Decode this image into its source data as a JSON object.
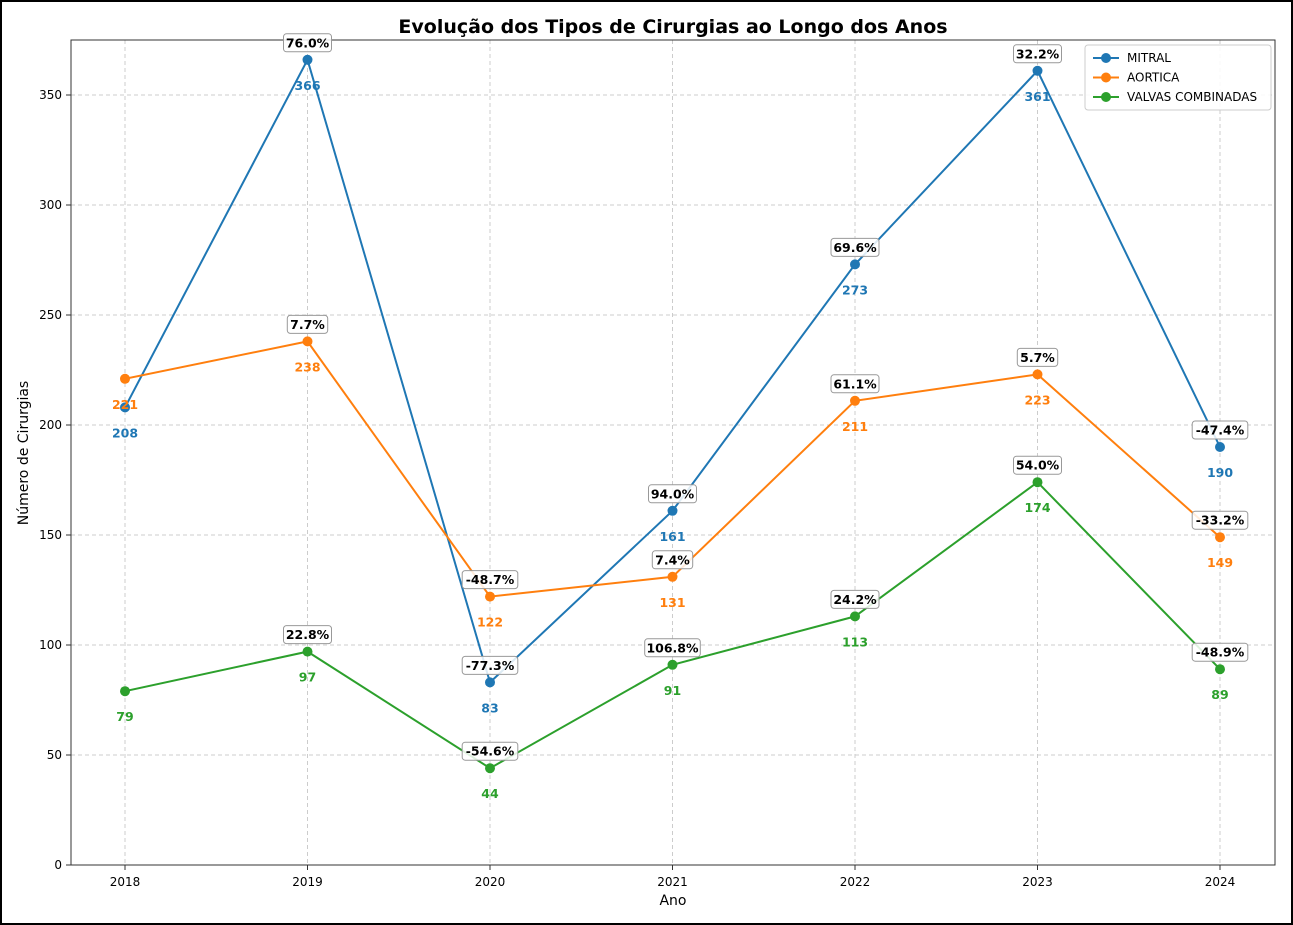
{
  "chart_data": {
    "type": "line",
    "title": "Evolução dos Tipos de Cirurgias ao Longo dos Anos",
    "xlabel": "Ano",
    "ylabel": "Número de Cirurgias",
    "x": [
      "2018",
      "2019",
      "2020",
      "2021",
      "2022",
      "2023",
      "2024"
    ],
    "ylim": [
      0,
      375
    ],
    "yticks": [
      0,
      50,
      100,
      150,
      200,
      250,
      300,
      350
    ],
    "grid": true,
    "legend_position": "top-right",
    "series": [
      {
        "name": "MITRAL",
        "color": "#1f77b4",
        "values": [
          208,
          366,
          83,
          161,
          273,
          361,
          190
        ],
        "pct_change": [
          null,
          "76.0%",
          "-77.3%",
          "94.0%",
          "69.6%",
          "32.2%",
          "-47.4%"
        ]
      },
      {
        "name": "AORTICA",
        "color": "#ff7f0e",
        "values": [
          221,
          238,
          122,
          131,
          211,
          223,
          149
        ],
        "pct_change": [
          null,
          "7.7%",
          "-48.7%",
          "7.4%",
          "61.1%",
          "5.7%",
          "-33.2%"
        ]
      },
      {
        "name": "VALVAS COMBINADAS",
        "color": "#2ca02c",
        "values": [
          79,
          97,
          44,
          91,
          113,
          174,
          89
        ],
        "pct_change": [
          null,
          "22.8%",
          "-54.6%",
          "106.8%",
          "24.2%",
          "54.0%",
          "-48.9%"
        ]
      }
    ]
  }
}
